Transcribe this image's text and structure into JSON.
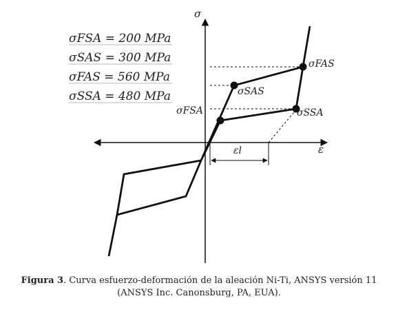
{
  "diagram": {
    "axis_y_label": "σ",
    "axis_x_label": "ε",
    "parameters": [
      "σFSA = 200 MPa",
      "σSAS = 300 MPa",
      "σFAS = 560 MPa",
      "σSSA = 480 MPa"
    ],
    "point_labels": {
      "fas": "σFAS",
      "sas": "σSAS",
      "fsa": "σFSA",
      "ssa": "σSSA"
    },
    "strain_label": "εl"
  },
  "caption": {
    "label": "Figura 3",
    "text": ". Curva esfuerzo-deformación de la aleación Ni-Ti, ANSYS versión 11",
    "line2": "(ANSYS Inc. Canonsburg, PA, EUA)."
  }
}
